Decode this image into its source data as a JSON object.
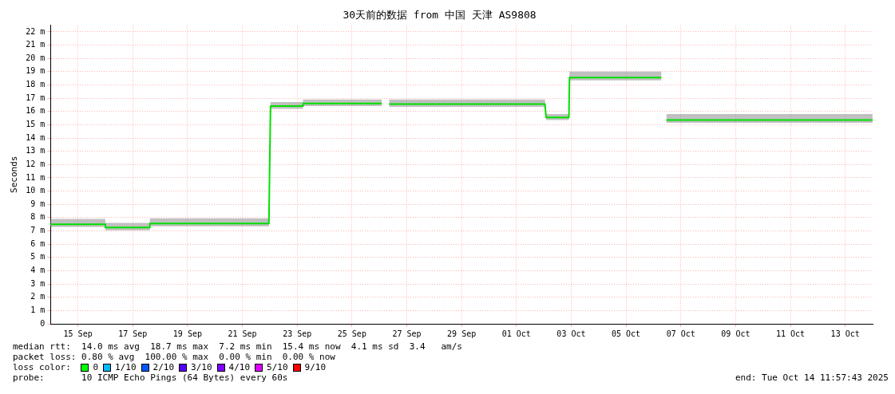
{
  "chart_data": {
    "type": "line",
    "title": "30天前的数据 from 中国 天津 AS9808",
    "ylabel": "Seconds",
    "x": [
      "2025-09-14T12:00",
      "2025-09-16T11:59",
      "2025-09-16T12:00",
      "2025-09-18T02:50",
      "2025-09-18T03:00",
      "2025-09-22T11:15",
      "2025-09-22T12:40",
      "2025-09-23T17:00",
      "2025-09-23T17:10",
      "2025-09-26T14:10",
      "2025-09-26T17:00",
      "2025-09-26T20:30",
      "2025-10-02T13:00",
      "2025-10-02T14:00",
      "2025-10-03T10:00",
      "2025-10-03T10:30",
      "2025-10-06T19:00",
      "2025-10-06T21:00",
      "2025-10-06T23:20",
      "2025-10-14T11:57"
    ],
    "series": [
      {
        "color": "#00e000",
        "values": [
          7.5,
          7.5,
          7.25,
          7.25,
          7.55,
          7.55,
          16.4,
          16.4,
          16.6,
          16.6,
          null,
          16.55,
          16.55,
          15.55,
          15.55,
          18.55,
          18.55,
          null,
          15.35,
          15.35
        ],
        "lower": [
          7.3,
          7.3,
          7.05,
          7.05,
          7.35,
          7.35,
          16.2,
          16.2,
          16.4,
          16.4,
          null,
          16.35,
          16.35,
          15.35,
          15.35,
          18.35,
          18.35,
          null,
          15.15,
          15.15
        ],
        "upper": [
          7.9,
          7.9,
          7.6,
          7.6,
          7.95,
          7.95,
          16.7,
          16.7,
          16.9,
          16.9,
          null,
          16.9,
          16.9,
          15.8,
          15.8,
          19.0,
          19.0,
          null,
          15.8,
          15.8
        ]
      }
    ],
    "xlim": [
      "2025-09-14T12:00",
      "2025-10-14T12:00"
    ],
    "xticks": [
      {
        "value": "2025-09-15T12:00",
        "label": "15 Sep"
      },
      {
        "value": "2025-09-17T12:00",
        "label": "17 Sep"
      },
      {
        "value": "2025-09-19T12:00",
        "label": "19 Sep"
      },
      {
        "value": "2025-09-21T12:00",
        "label": "21 Sep"
      },
      {
        "value": "2025-09-23T12:00",
        "label": "23 Sep"
      },
      {
        "value": "2025-09-25T12:00",
        "label": "25 Sep"
      },
      {
        "value": "2025-09-27T12:00",
        "label": "27 Sep"
      },
      {
        "value": "2025-09-29T12:00",
        "label": "29 Sep"
      },
      {
        "value": "2025-10-01T12:00",
        "label": "01 Oct"
      },
      {
        "value": "2025-10-03T12:00",
        "label": "03 Oct"
      },
      {
        "value": "2025-10-05T12:00",
        "label": "05 Oct"
      },
      {
        "value": "2025-10-07T12:00",
        "label": "07 Oct"
      },
      {
        "value": "2025-10-09T12:00",
        "label": "09 Oct"
      },
      {
        "value": "2025-10-11T12:00",
        "label": "11 Oct"
      },
      {
        "value": "2025-10-13T12:00",
        "label": "13 Oct"
      }
    ],
    "ylim": [
      0,
      22.5
    ],
    "yticks": [
      0,
      {
        "value": 1,
        "label": "1 m"
      },
      {
        "value": 2,
        "label": "2 m"
      },
      {
        "value": 3,
        "label": "3 m"
      },
      {
        "value": 4,
        "label": "4 m"
      },
      {
        "value": 5,
        "label": "5 m"
      },
      {
        "value": 6,
        "label": "6 m"
      },
      {
        "value": 7,
        "label": "7 m"
      },
      {
        "value": 8,
        "label": "8 m"
      },
      {
        "value": 9,
        "label": "9 m"
      },
      {
        "value": 10,
        "label": "10 m"
      },
      {
        "value": 11,
        "label": "11 m"
      },
      {
        "value": 12,
        "label": "12 m"
      },
      {
        "value": 13,
        "label": "13 m"
      },
      {
        "value": 14,
        "label": "14 m"
      },
      {
        "value": 15,
        "label": "15 m"
      },
      {
        "value": 16,
        "label": "16 m"
      },
      {
        "value": 17,
        "label": "17 m"
      },
      {
        "value": 18,
        "label": "18 m"
      },
      {
        "value": 19,
        "label": "19 m"
      },
      {
        "value": 20,
        "label": "20 m"
      },
      {
        "value": 21,
        "label": "21 m"
      },
      {
        "value": 22,
        "label": "22 m"
      }
    ],
    "grid": true,
    "annotations": [
      "median rtt:  14.0 ms avg  18.7 ms max  7.2 ms min  15.4 ms now  4.1 ms sd  3.4   am/s",
      "packet loss: 0.80 % avg  100.00 % max  0.00 % min  0.00 % now",
      "loss color:",
      "0",
      "1/10",
      "2/10",
      "3/10",
      "4/10",
      "5/10",
      "9/10",
      "probe:       10 ICMP Echo Pings (64 Bytes) every 60s",
      "end: Tue Oct 14 11:57:43 2025"
    ]
  }
}
